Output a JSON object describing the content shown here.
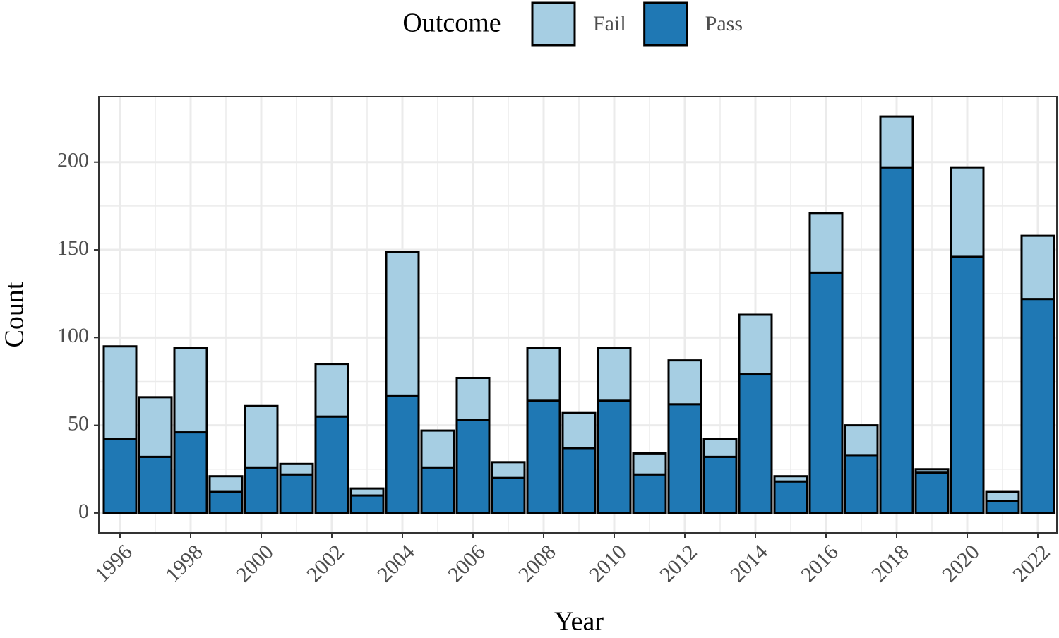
{
  "chart_data": {
    "type": "stacked_bar",
    "x_label": "Year",
    "y_label": "Count",
    "legend_title": "Outcome",
    "legend_position": "top",
    "x": [
      1996,
      1997,
      1998,
      1999,
      2000,
      2001,
      2002,
      2003,
      2004,
      2005,
      2006,
      2007,
      2008,
      2009,
      2010,
      2011,
      2012,
      2013,
      2014,
      2015,
      2016,
      2017,
      2018,
      2019,
      2020,
      2021,
      2022
    ],
    "series": [
      {
        "name": "Fail",
        "color": "#a6cee3",
        "values": [
          53,
          34,
          48,
          9,
          35,
          6,
          30,
          4,
          82,
          21,
          24,
          9,
          30,
          20,
          30,
          12,
          25,
          10,
          34,
          3,
          34,
          17,
          29,
          2,
          51,
          5,
          36
        ]
      },
      {
        "name": "Pass",
        "color": "#1f78b4",
        "values": [
          42,
          32,
          46,
          12,
          26,
          22,
          55,
          10,
          67,
          26,
          53,
          20,
          64,
          37,
          64,
          22,
          62,
          32,
          79,
          18,
          137,
          33,
          197,
          23,
          146,
          7,
          122
        ]
      }
    ],
    "xlim": [
      1995.4,
      2022.54
    ],
    "xticks": [
      1996,
      1998,
      2000,
      2002,
      2004,
      2006,
      2008,
      2010,
      2012,
      2014,
      2016,
      2018,
      2020,
      2022
    ],
    "ylim": [
      -11.3,
      237.3
    ],
    "yticks": [
      0,
      50,
      100,
      150,
      200
    ],
    "grid": true
  }
}
